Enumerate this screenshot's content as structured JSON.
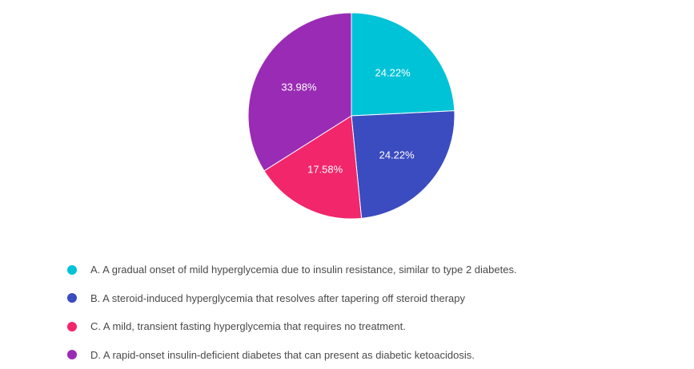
{
  "chart_data": {
    "type": "pie",
    "categories": [
      "A. A gradual onset of mild hyperglycemia due to insulin resistance, similar to type 2 diabetes.",
      "B. A steroid-induced hyperglycemia that resolves after tapering off steroid therapy",
      "C. A mild, transient fasting hyperglycemia that requires no treatment.",
      "D. A rapid-onset insulin-deficient diabetes that can present as diabetic ketoacidosis."
    ],
    "values": [
      24.22,
      24.22,
      17.58,
      33.98
    ],
    "labels": [
      "24.22%",
      "24.22%",
      "17.58%",
      "33.98%"
    ],
    "colors": [
      "#00C3D8",
      "#3B4CC0",
      "#F2266A",
      "#9A2BB5"
    ],
    "legend_placement": "bottom",
    "title": ""
  }
}
